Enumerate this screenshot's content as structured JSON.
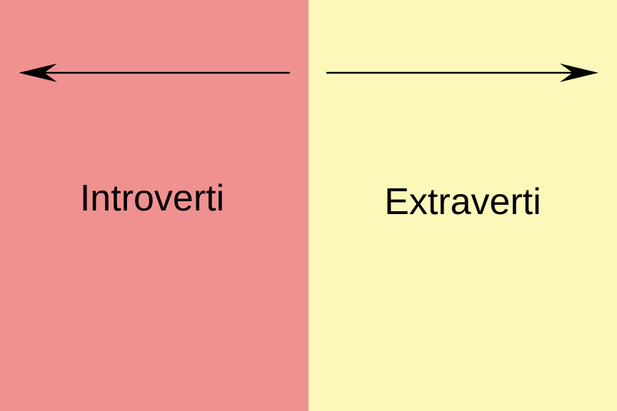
{
  "left": {
    "label": "Introverti",
    "color": "#f09191",
    "arrow_direction": "left"
  },
  "right": {
    "label": "Extraverti",
    "color": "#fcf8ba",
    "arrow_direction": "right"
  },
  "arrow_color": "#000000"
}
